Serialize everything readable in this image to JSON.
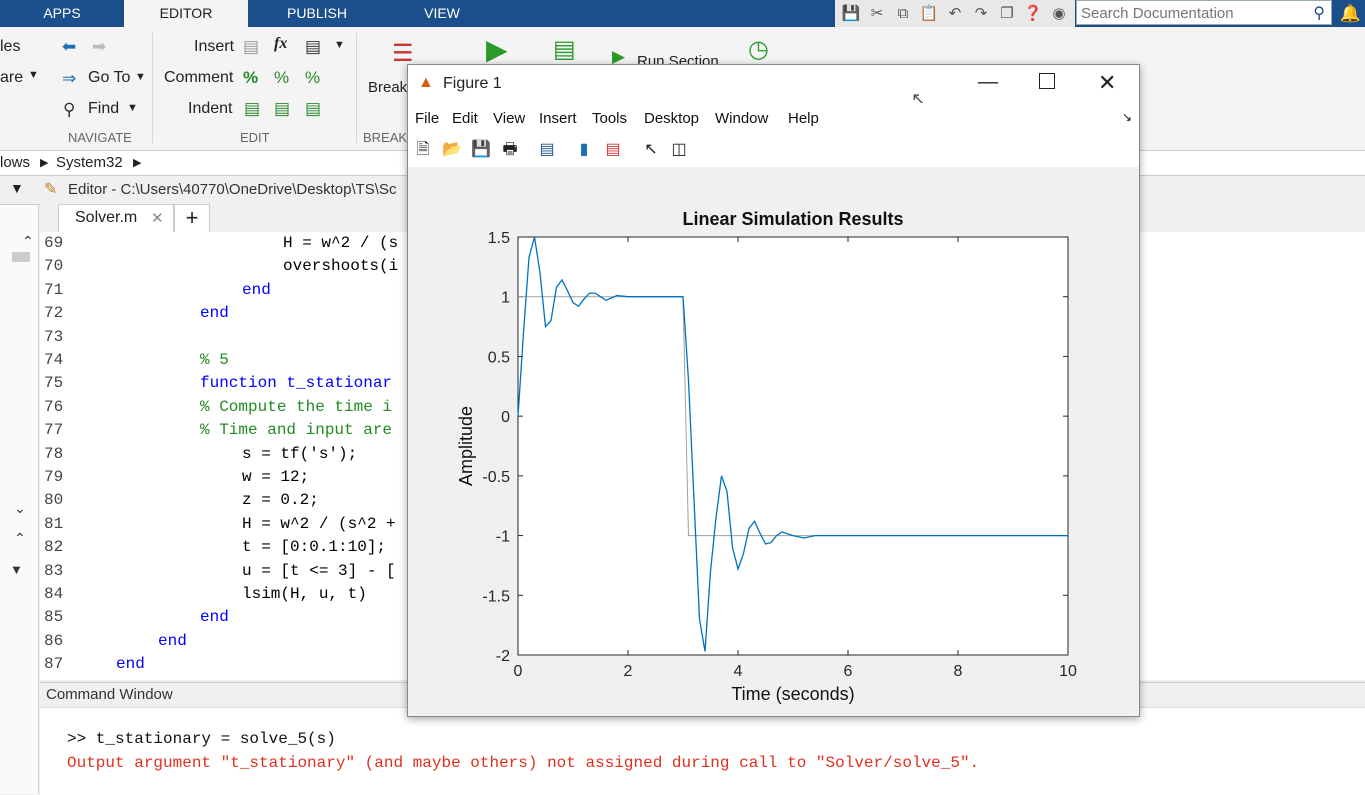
{
  "tabs": [
    "APPS",
    "EDITOR",
    "PUBLISH",
    "VIEW"
  ],
  "search": {
    "placeholder": "Search Documentation"
  },
  "ribbon": {
    "navigate": {
      "label": "NAVIGATE",
      "files": "les",
      "compare": "are",
      "goto": "Go To",
      "find": "Find"
    },
    "edit": {
      "label": "EDIT",
      "insert": "Insert",
      "comment": "Comment",
      "indent": "Indent"
    },
    "breakpoints": {
      "label": "BREAK",
      "button": "Break"
    },
    "run_section": "Run Section"
  },
  "breadcrumb": [
    "lows",
    "System32"
  ],
  "editor": {
    "header": "Editor - C:\\Users\\40770\\OneDrive\\Desktop\\TS\\Sc",
    "tab": "Solver.m"
  },
  "code_lines": [
    {
      "n": "69",
      "text": "H = w^2 / (s"
    },
    {
      "n": "70",
      "text": "overshoots(i"
    },
    {
      "n": "71",
      "text": "end"
    },
    {
      "n": "72",
      "text": "end"
    },
    {
      "n": "73",
      "text": ""
    },
    {
      "n": "74",
      "text": "% 5"
    },
    {
      "n": "75",
      "text": "function t_stationar"
    },
    {
      "n": "76",
      "text": "% Compute the time i"
    },
    {
      "n": "77",
      "text": "% Time and input are"
    },
    {
      "n": "78",
      "text": "s = tf('s');"
    },
    {
      "n": "79",
      "text": "w = 12;"
    },
    {
      "n": "80",
      "text": "z = 0.2;"
    },
    {
      "n": "81",
      "text": "H = w^2 / (s^2 +"
    },
    {
      "n": "82",
      "text": "t = [0:0.1:10];"
    },
    {
      "n": "83",
      "text": "u = [t <= 3] - ["
    },
    {
      "n": "84",
      "text": "lsim(H, u, t)"
    },
    {
      "n": "85",
      "text": "end"
    },
    {
      "n": "86",
      "text": "end"
    },
    {
      "n": "87",
      "text": "end"
    }
  ],
  "command_window": {
    "title": "Command Window",
    "input": ">> t_stationary = solve_5(s)",
    "error": "Output argument \"t_stationary\" (and maybe others) not assigned during call to \"Solver/solve_5\"."
  },
  "figure": {
    "title": "Figure 1",
    "menu": [
      "File",
      "Edit",
      "View",
      "Insert",
      "Tools",
      "Desktop",
      "Window",
      "Help"
    ]
  },
  "colors": {
    "accent": "#1b4f8c",
    "line": "#0072bd",
    "input_line": "#a0a0a0",
    "error": "#e0301e"
  },
  "chart_data": {
    "type": "line",
    "title": "Linear Simulation Results",
    "xlabel": "Time (seconds)",
    "ylabel": "Amplitude",
    "xlim": [
      0,
      10
    ],
    "ylim": [
      -2,
      1.5
    ],
    "xticks": [
      "0",
      "2",
      "4",
      "6",
      "8",
      "10"
    ],
    "yticks": [
      "1.5",
      "1",
      "0.5",
      "0",
      "-0.5",
      "-1",
      "-1.5",
      "-2"
    ],
    "grid": false,
    "series": [
      {
        "x": [
          0,
          0.1,
          0.2,
          0.3,
          0.4,
          0.5,
          0.6,
          0.7,
          0.8,
          0.9,
          1.0,
          1.1,
          1.2,
          1.3,
          1.4,
          1.5,
          1.6,
          1.7,
          1.8,
          2.0,
          2.2,
          2.4,
          2.6,
          2.8,
          3.0,
          3.1,
          3.2,
          3.3,
          3.4,
          3.5,
          3.6,
          3.7,
          3.8,
          3.9,
          4.0,
          4.1,
          4.2,
          4.3,
          4.4,
          4.5,
          4.6,
          4.7,
          4.8,
          5.0,
          5.2,
          5.4,
          6.0,
          7.0,
          8.0,
          10.0
        ],
        "y": [
          0,
          0.7,
          1.33,
          1.5,
          1.2,
          0.75,
          0.8,
          1.08,
          1.14,
          1.05,
          0.95,
          0.92,
          0.98,
          1.03,
          1.03,
          1.0,
          0.97,
          0.99,
          1.01,
          1.0,
          1.0,
          1.0,
          1.0,
          1.0,
          1.0,
          0.3,
          -0.7,
          -1.7,
          -1.97,
          -1.3,
          -0.85,
          -0.5,
          -0.63,
          -1.1,
          -1.28,
          -1.15,
          -0.94,
          -0.88,
          -0.98,
          -1.07,
          -1.06,
          -1.0,
          -0.97,
          -1.0,
          -1.02,
          -1.0,
          -1.0,
          -1.0,
          -1.0,
          -1.0
        ]
      },
      {
        "x": [
          0,
          3.0,
          3.1,
          10
        ],
        "y": [
          1,
          1,
          -1,
          -1
        ]
      }
    ]
  }
}
